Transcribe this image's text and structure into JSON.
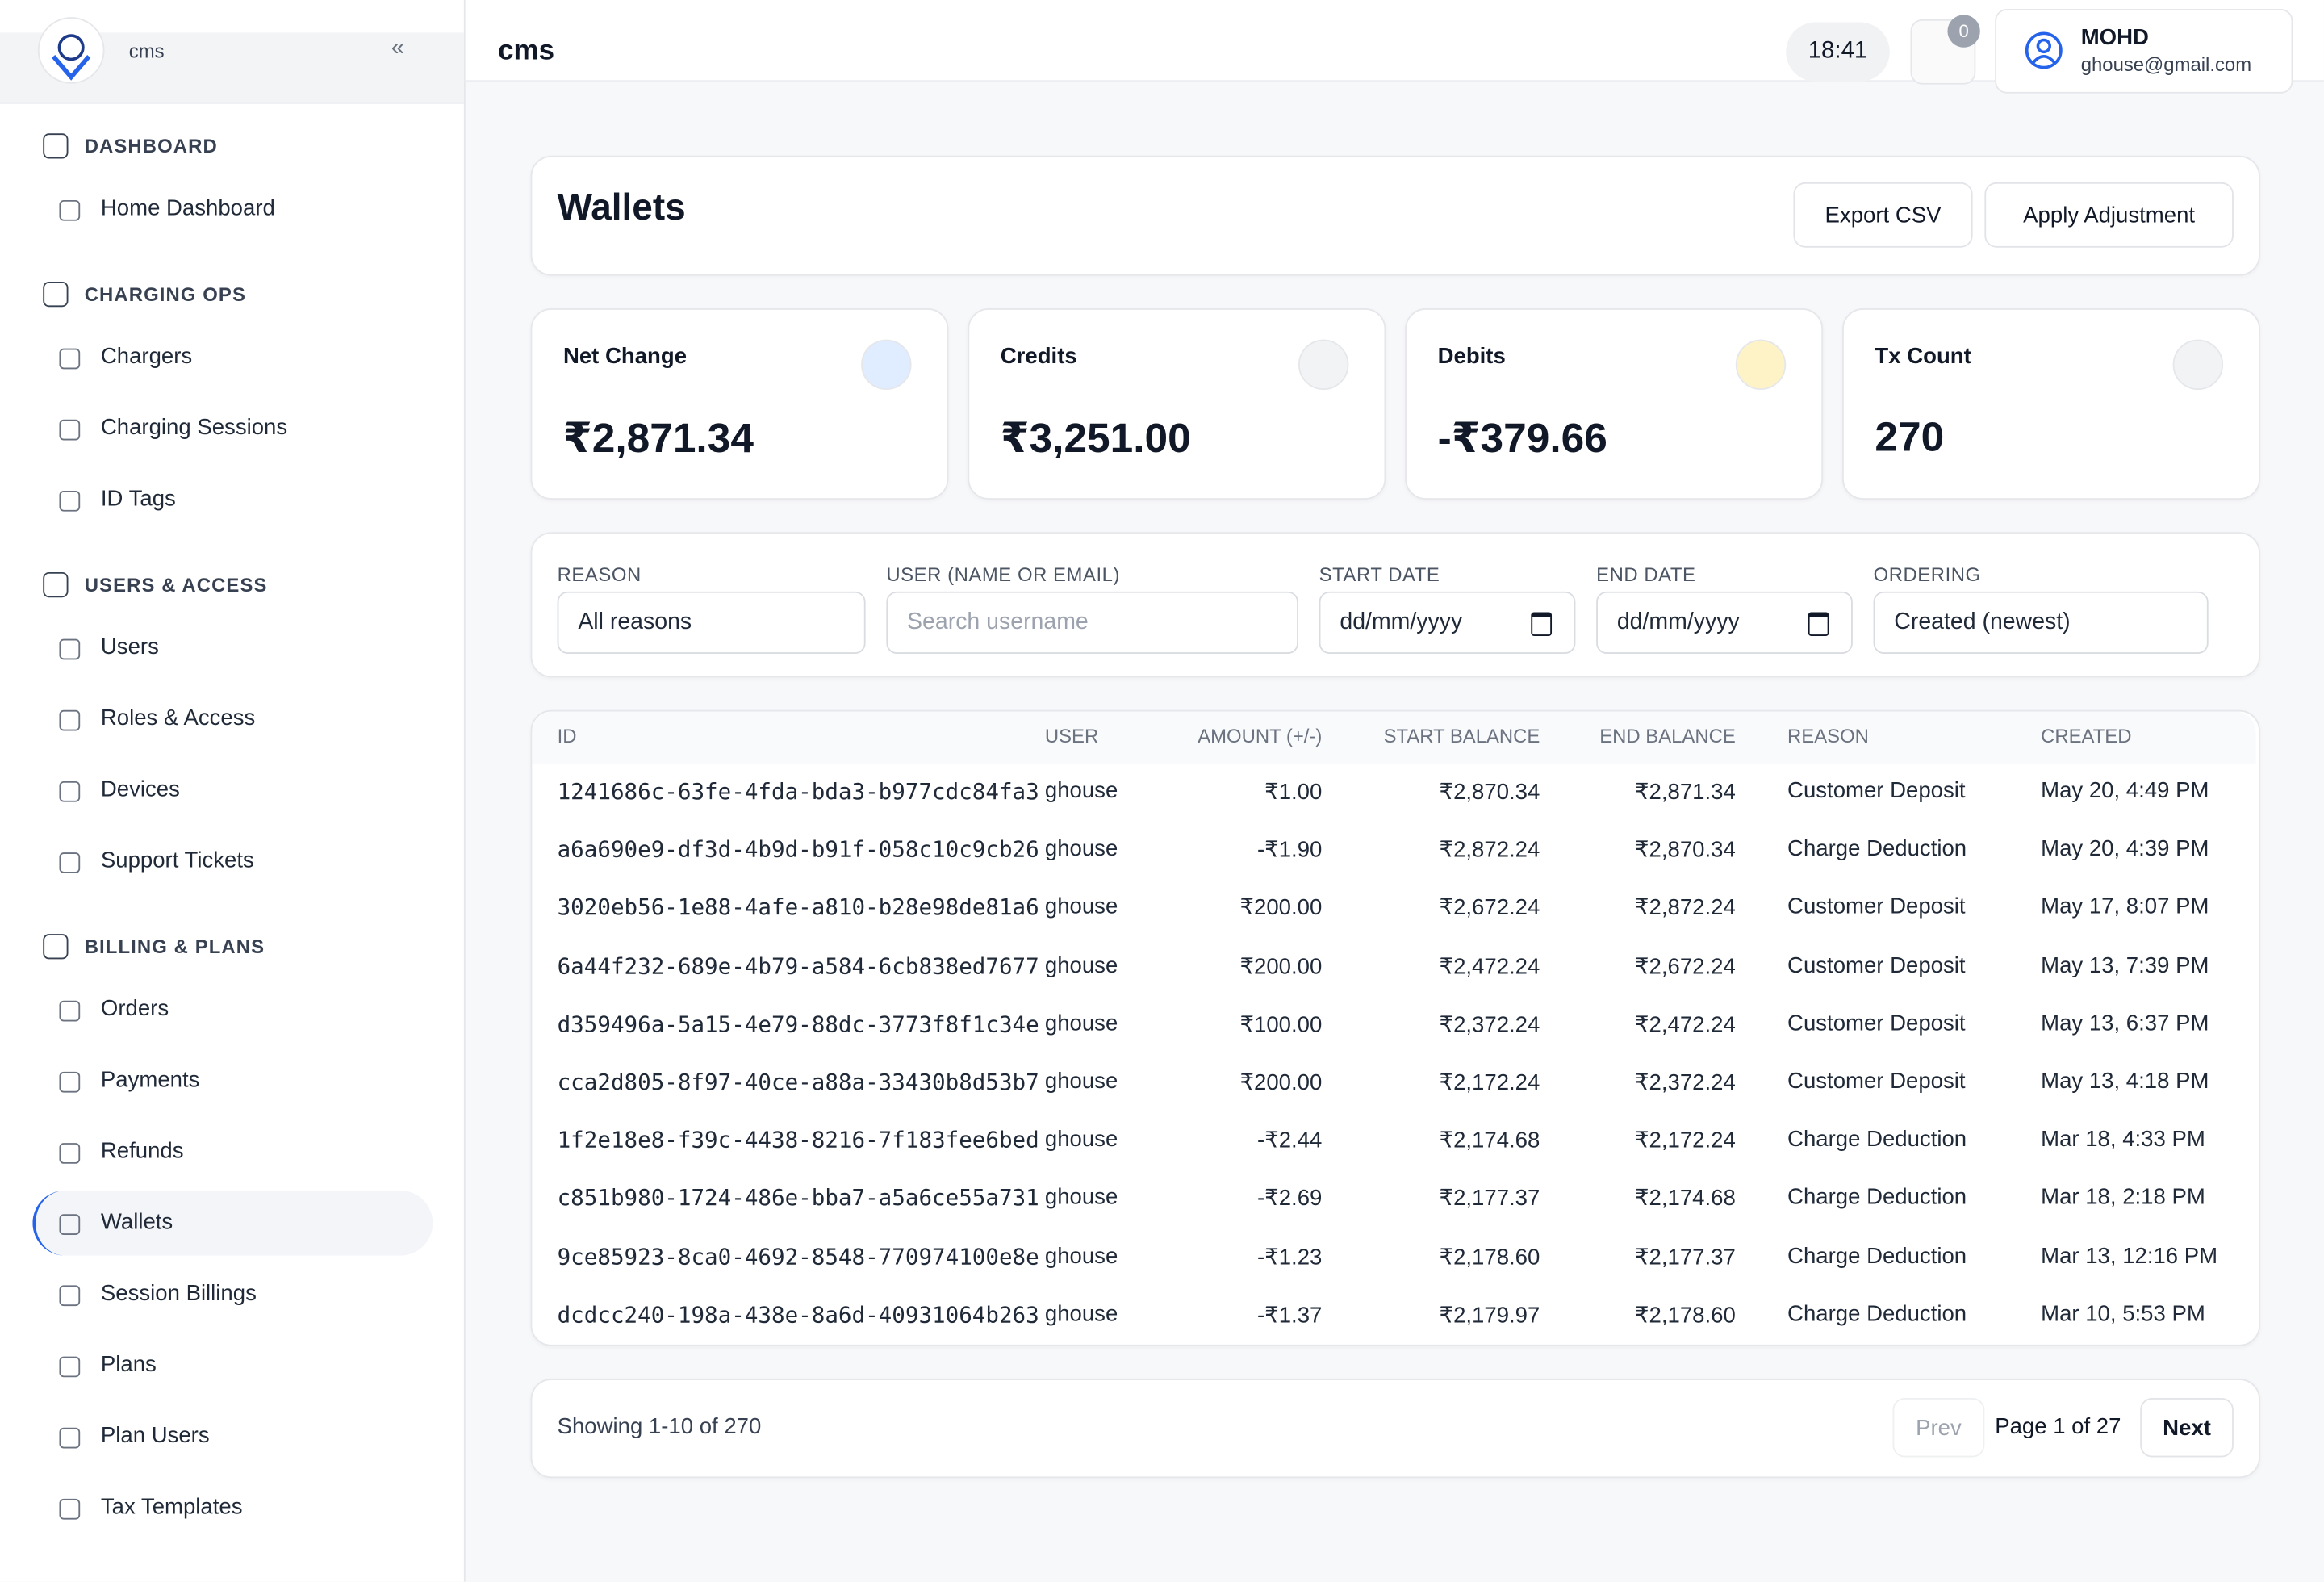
{
  "sidebar": {
    "brand": "cms",
    "sections": [
      {
        "title": "DASHBOARD",
        "items": [
          {
            "label": "Home Dashboard"
          }
        ]
      },
      {
        "title": "CHARGING OPS",
        "items": [
          {
            "label": "Chargers"
          },
          {
            "label": "Charging Sessions"
          },
          {
            "label": "ID Tags"
          }
        ]
      },
      {
        "title": "USERS & ACCESS",
        "items": [
          {
            "label": "Users"
          },
          {
            "label": "Roles & Access"
          },
          {
            "label": "Devices"
          },
          {
            "label": "Support Tickets"
          }
        ]
      },
      {
        "title": "BILLING & PLANS",
        "items": [
          {
            "label": "Orders"
          },
          {
            "label": "Payments"
          },
          {
            "label": "Refunds"
          },
          {
            "label": "Wallets",
            "active": true
          },
          {
            "label": "Session Billings"
          },
          {
            "label": "Plans"
          },
          {
            "label": "Plan Users"
          },
          {
            "label": "Tax Templates"
          }
        ]
      }
    ]
  },
  "header": {
    "title": "cms",
    "time": "18:41",
    "notifications": 0,
    "user_name": "MOHD",
    "user_email": "ghouse@gmail.com"
  },
  "page": {
    "title": "Wallets",
    "buttons": [
      "Export CSV",
      "Apply Adjustment"
    ]
  },
  "stats": [
    {
      "label": "Net Change",
      "value": "₹2,871.34"
    },
    {
      "label": "Credits",
      "value": "₹3,251.00"
    },
    {
      "label": "Debits",
      "value": "-₹379.66"
    },
    {
      "label": "Tx Count",
      "value": "270"
    }
  ],
  "filters": [
    {
      "label": "REASON",
      "value": "All reasons"
    },
    {
      "label": "USER (NAME OR EMAIL)",
      "placeholder": "Search username"
    },
    {
      "label": "START DATE",
      "value": "dd/mm/yyyy"
    },
    {
      "label": "END DATE",
      "value": "dd/mm/yyyy"
    },
    {
      "label": "ORDERING",
      "value": "Created (newest)"
    }
  ],
  "table": {
    "columns": [
      "ID",
      "USER",
      "AMOUNT (+/-)",
      "START BALANCE",
      "END BALANCE",
      "REASON",
      "CREATED"
    ],
    "rows": [
      [
        "1241686c-63fe-4fda-bda3-b977cdc84fa3",
        "ghouse",
        "₹1.00",
        "₹2,870.34",
        "₹2,871.34",
        "Customer Deposit",
        "May 20, 4:49 PM"
      ],
      [
        "a6a690e9-df3d-4b9d-b91f-058c10c9cb26",
        "ghouse",
        "-₹1.90",
        "₹2,872.24",
        "₹2,870.34",
        "Charge Deduction",
        "May 20, 4:39 PM"
      ],
      [
        "3020eb56-1e88-4afe-a810-b28e98de81a6",
        "ghouse",
        "₹200.00",
        "₹2,672.24",
        "₹2,872.24",
        "Customer Deposit",
        "May 17, 8:07 PM"
      ],
      [
        "6a44f232-689e-4b79-a584-6cb838ed7677",
        "ghouse",
        "₹200.00",
        "₹2,472.24",
        "₹2,672.24",
        "Customer Deposit",
        "May 13, 7:39 PM"
      ],
      [
        "d359496a-5a15-4e79-88dc-3773f8f1c34e",
        "ghouse",
        "₹100.00",
        "₹2,372.24",
        "₹2,472.24",
        "Customer Deposit",
        "May 13, 6:37 PM"
      ],
      [
        "cca2d805-8f97-40ce-a88a-33430b8d53b7",
        "ghouse",
        "₹200.00",
        "₹2,172.24",
        "₹2,372.24",
        "Customer Deposit",
        "May 13, 4:18 PM"
      ],
      [
        "1f2e18e8-f39c-4438-8216-7f183fee6bed",
        "ghouse",
        "-₹2.44",
        "₹2,174.68",
        "₹2,172.24",
        "Charge Deduction",
        "Mar 18, 4:33 PM"
      ],
      [
        "c851b980-1724-486e-bba7-a5a6ce55a731",
        "ghouse",
        "-₹2.69",
        "₹2,177.37",
        "₹2,174.68",
        "Charge Deduction",
        "Mar 18, 2:18 PM"
      ],
      [
        "9ce85923-8ca0-4692-8548-770974100e8e",
        "ghouse",
        "-₹1.23",
        "₹2,178.60",
        "₹2,177.37",
        "Charge Deduction",
        "Mar 13, 12:16 PM"
      ],
      [
        "dcdcc240-198a-438e-8a6d-40931064b263",
        "ghouse",
        "-₹1.37",
        "₹2,179.97",
        "₹2,178.60",
        "Charge Deduction",
        "Mar 10, 5:53 PM"
      ]
    ]
  },
  "pagination": {
    "summary": "Showing 1-10 of 270",
    "prev": "Prev",
    "page": "Page 1 of 27",
    "next": "Next"
  }
}
